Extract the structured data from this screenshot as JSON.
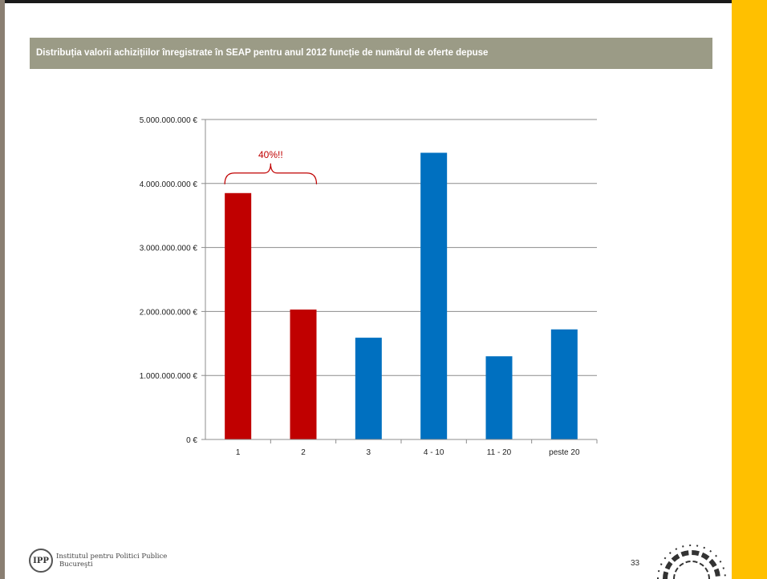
{
  "slide": {
    "title": "Distribuția valorii achizițiilor înregistrate în SEAP pentru anul 2012 funcție de numărul de oferte depuse",
    "page_number": "33",
    "footer_logo_text_line1": "Institutul pentru Politici Publice",
    "footer_logo_text_line2": "Bucureşti",
    "logo_monogram": "IPP",
    "colors": {
      "accent_yellow": "#ffc000",
      "title_band": "#9b9b86",
      "frame": "#8a7f72"
    }
  },
  "chart_data": {
    "type": "bar",
    "categories": [
      "1",
      "2",
      "3",
      "4 - 10",
      "11 - 20",
      "peste 20"
    ],
    "values": [
      3850000000,
      2030000000,
      1590000000,
      4480000000,
      1300000000,
      1720000000
    ],
    "bar_colors": [
      "#c00000",
      "#c00000",
      "#0070c0",
      "#0070c0",
      "#0070c0",
      "#0070c0"
    ],
    "ylim": [
      0,
      5000000000
    ],
    "yticks": [
      0,
      1000000000,
      2000000000,
      3000000000,
      4000000000,
      5000000000
    ],
    "ytick_labels": [
      "0 €",
      "1.000.000.000 €",
      "2.000.000.000 €",
      "3.000.000.000 €",
      "4.000.000.000 €",
      "5.000.000.000 €"
    ],
    "grid": true,
    "legend": "none",
    "annotation": {
      "text": "40%!!",
      "color": "#c00000",
      "spans_categories": [
        "1",
        "2"
      ]
    }
  }
}
